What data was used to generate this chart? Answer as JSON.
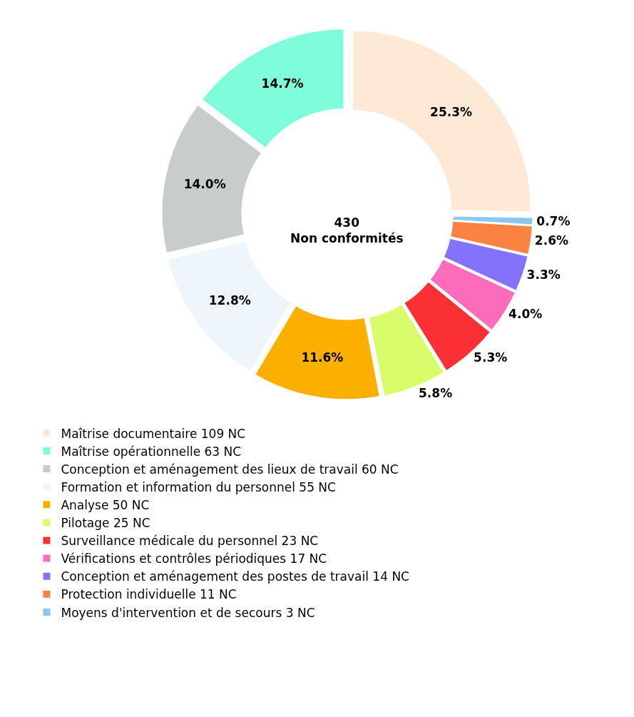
{
  "chart_data": {
    "type": "donut",
    "categories": [
      "Maîtrise documentaire 109 NC",
      "Maîtrise opérationnelle 63 NC",
      "Conception et aménagement des lieux de travail 60 NC",
      "Formation et information du personnel 55 NC",
      "Analyse 50 NC",
      "Pilotage 25 NC",
      "Surveillance médicale du personnel 23 NC",
      "Vérifications et contrôles périodiques 17 NC",
      "Conception et aménagement des postes de travail 14 NC",
      "Protection individuelle 11 NC",
      "Moyens d'intervention et de secours 3 NC"
    ],
    "values": [
      25.3,
      14.7,
      14.0,
      12.8,
      11.6,
      5.8,
      5.3,
      4.0,
      3.3,
      2.6,
      0.7
    ],
    "value_labels": [
      "25.3%",
      "14.7%",
      "14.0%",
      "12.8%",
      "11.6%",
      "5.8%",
      "5.3%",
      "4.0%",
      "3.3%",
      "2.6%",
      "0.7%"
    ],
    "colors": [
      "#fde9d5",
      "#7ffcd9",
      "#c8cdcb",
      "#eef6fc",
      "#fbb000",
      "#d8fc6a",
      "#fb3034",
      "#fd6cbb",
      "#8572fc",
      "#fc8241",
      "#8ec6f2"
    ],
    "annotations": [
      "430\nNon conformités"
    ],
    "legend": "bottom"
  }
}
